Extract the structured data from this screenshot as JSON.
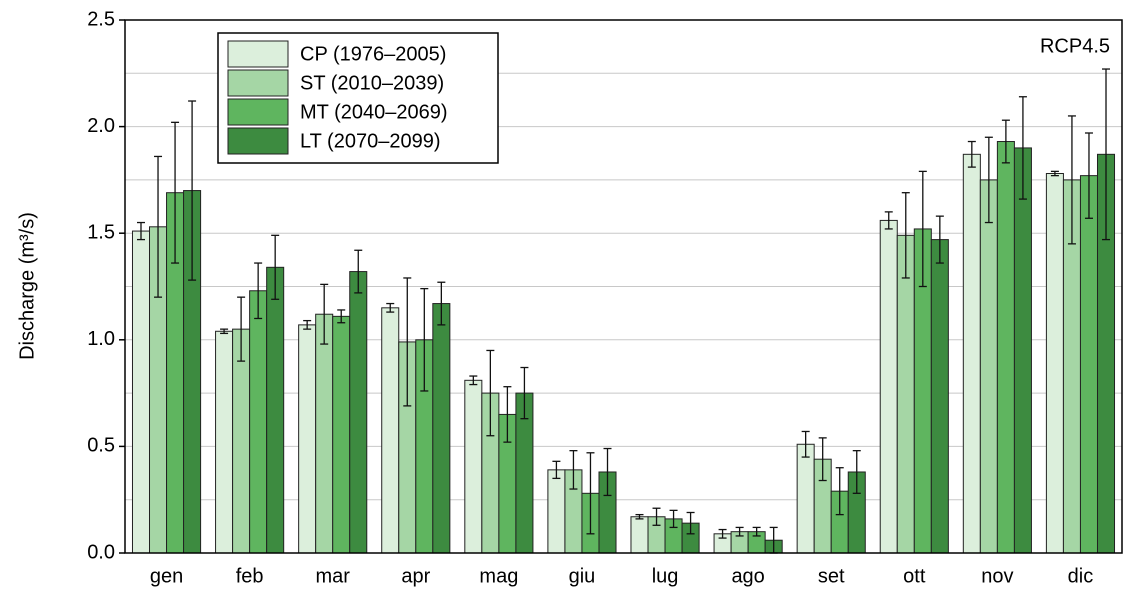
{
  "chart_data": {
    "type": "bar",
    "y_label": "Discharge (m³/s)",
    "annotation": "RCP4.5",
    "categories": [
      "gen",
      "feb",
      "mar",
      "apr",
      "mag",
      "giu",
      "lug",
      "ago",
      "set",
      "ott",
      "nov",
      "dic"
    ],
    "series": [
      {
        "name": "CP (1976–2005)",
        "color": "#dcefdc",
        "values": [
          1.51,
          1.04,
          1.07,
          1.15,
          0.81,
          0.39,
          0.17,
          0.09,
          0.51,
          1.56,
          1.87,
          1.78
        ],
        "errors": [
          0.04,
          0.01,
          0.02,
          0.02,
          0.02,
          0.04,
          0.01,
          0.02,
          0.06,
          0.04,
          0.06,
          0.01
        ]
      },
      {
        "name": "ST (2010–2039)",
        "color": "#a5d6a5",
        "values": [
          1.53,
          1.05,
          1.12,
          0.99,
          0.75,
          0.39,
          0.17,
          0.1,
          0.44,
          1.49,
          1.75,
          1.75
        ],
        "errors": [
          0.33,
          0.15,
          0.14,
          0.3,
          0.2,
          0.09,
          0.04,
          0.02,
          0.1,
          0.2,
          0.2,
          0.3
        ]
      },
      {
        "name": "MT (2040–2069)",
        "color": "#5fb55f",
        "values": [
          1.69,
          1.23,
          1.11,
          1.0,
          0.65,
          0.28,
          0.16,
          0.1,
          0.29,
          1.52,
          1.93,
          1.77
        ],
        "errors": [
          0.33,
          0.13,
          0.03,
          0.24,
          0.13,
          0.19,
          0.04,
          0.02,
          0.11,
          0.27,
          0.1,
          0.2
        ]
      },
      {
        "name": "LT (2070–2099)",
        "color": "#3d8b40",
        "values": [
          1.7,
          1.34,
          1.32,
          1.17,
          0.75,
          0.38,
          0.14,
          0.06,
          0.38,
          1.47,
          1.9,
          1.87
        ],
        "errors": [
          0.42,
          0.15,
          0.1,
          0.1,
          0.12,
          0.11,
          0.05,
          0.06,
          0.1,
          0.11,
          0.24,
          0.4
        ]
      }
    ],
    "ylim": [
      0,
      2.5
    ],
    "yticks": [
      {
        "value": 0,
        "label": "0.0"
      },
      {
        "value": 0.5,
        "label": "0.5"
      },
      {
        "value": 1,
        "label": "1.0"
      },
      {
        "value": 1.5,
        "label": "1.5"
      },
      {
        "value": 2,
        "label": "2.0"
      },
      {
        "value": 2.5,
        "label": "2.5"
      }
    ],
    "minor_grid": [
      0.25,
      0.75,
      1.25,
      1.75,
      2.25
    ],
    "grid": true,
    "legend": "upper-left"
  }
}
